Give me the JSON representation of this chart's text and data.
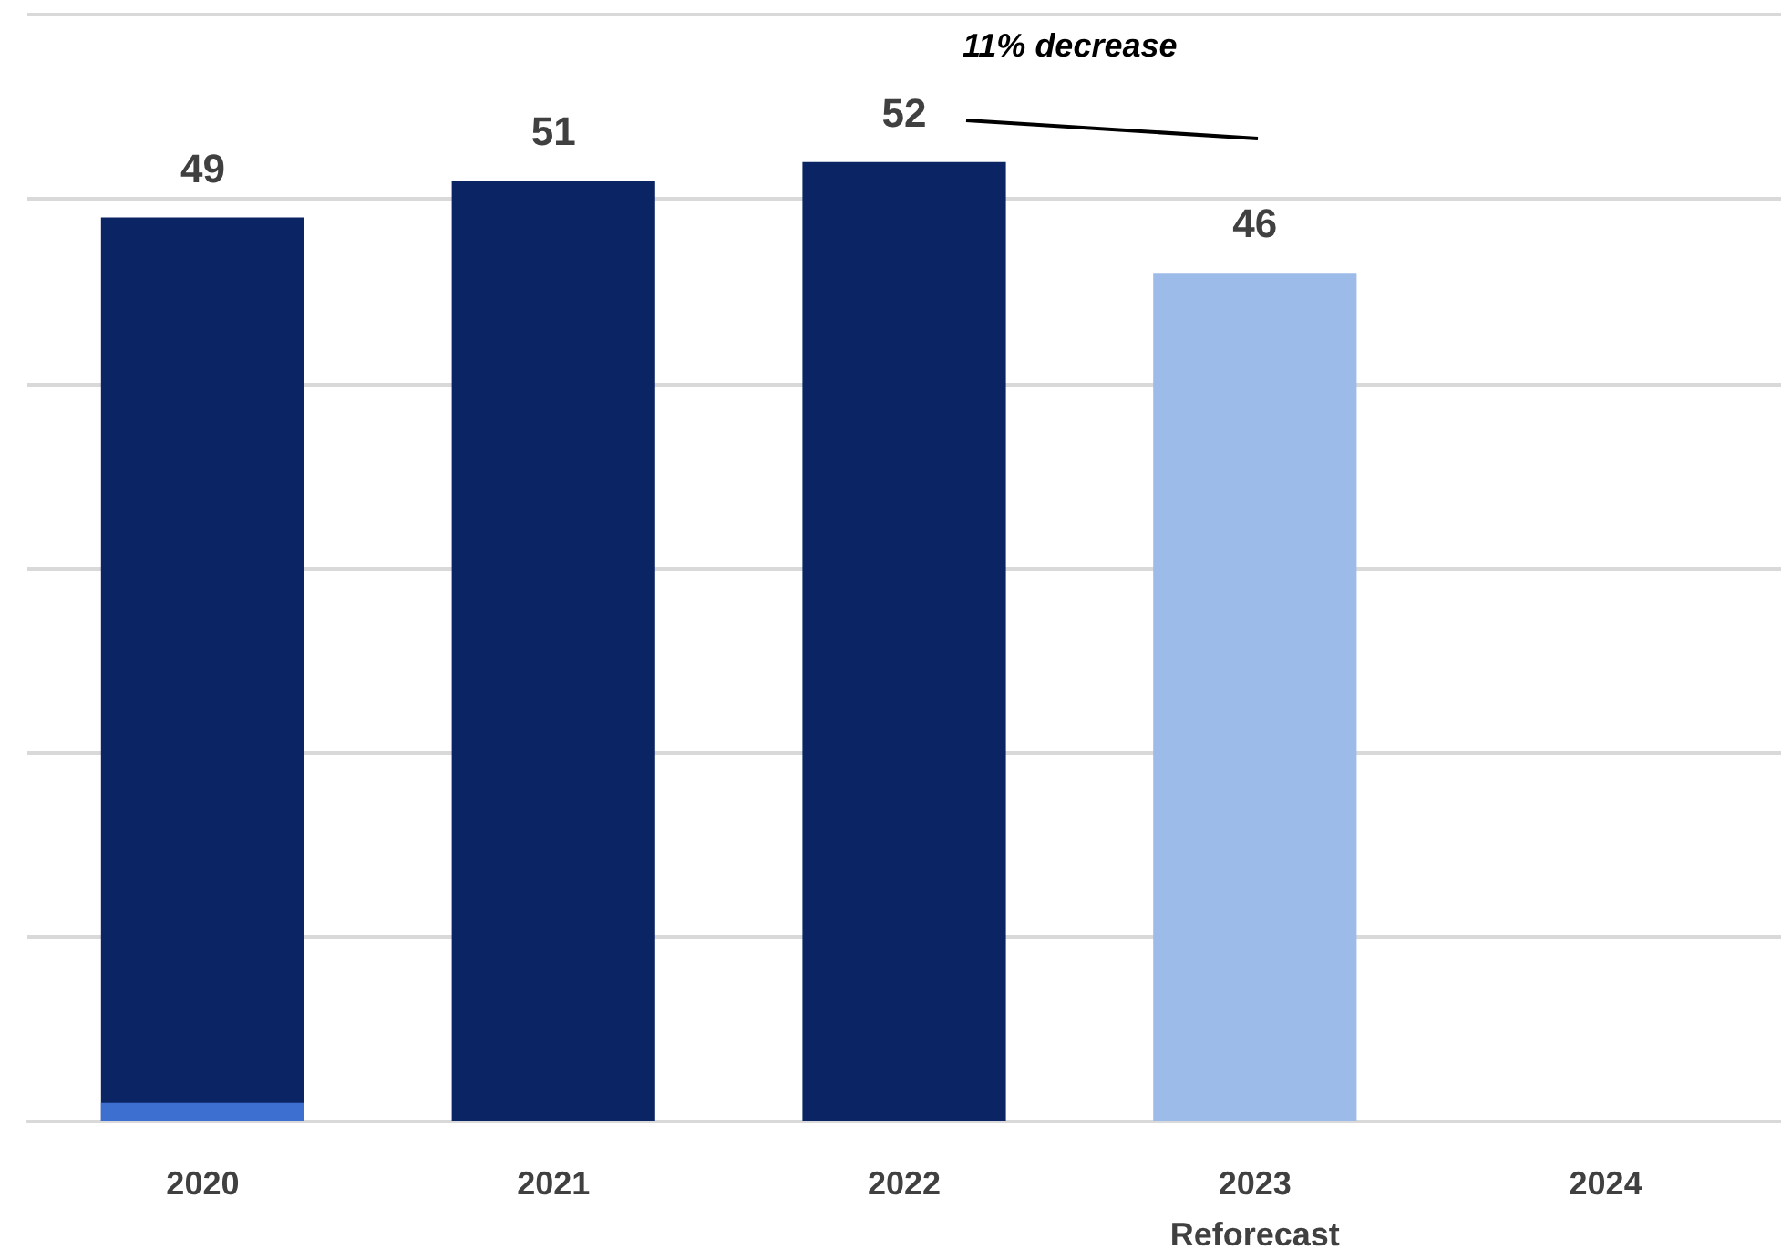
{
  "chart_data": {
    "type": "bar",
    "categories": [
      "2020",
      "2021",
      "2022",
      "2023\nReforecast",
      "2024"
    ],
    "series": [
      {
        "values": [
          49,
          51,
          52,
          46,
          null
        ],
        "colors": [
          "#0b2463",
          "#0b2463",
          "#0b2463",
          "#9cbbe9",
          null
        ],
        "value_labels": [
          "49",
          "51",
          "52",
          "46",
          null
        ]
      },
      {
        "values": [
          1,
          null,
          null,
          null,
          null
        ],
        "color": "#3d6fd1"
      }
    ],
    "ylim": [
      0,
      60
    ],
    "yticks": [
      {
        "value": 0,
        "label": null
      },
      {
        "value": 10,
        "label": null
      },
      {
        "value": 20,
        "label": null
      },
      {
        "value": 30,
        "label": null
      },
      {
        "value": 40,
        "label": null
      },
      {
        "value": 50,
        "label": null
      },
      {
        "value": 60,
        "label": null
      }
    ],
    "tick_labels": "x",
    "grid": "y",
    "annotations": [
      "11% decrease"
    ]
  }
}
